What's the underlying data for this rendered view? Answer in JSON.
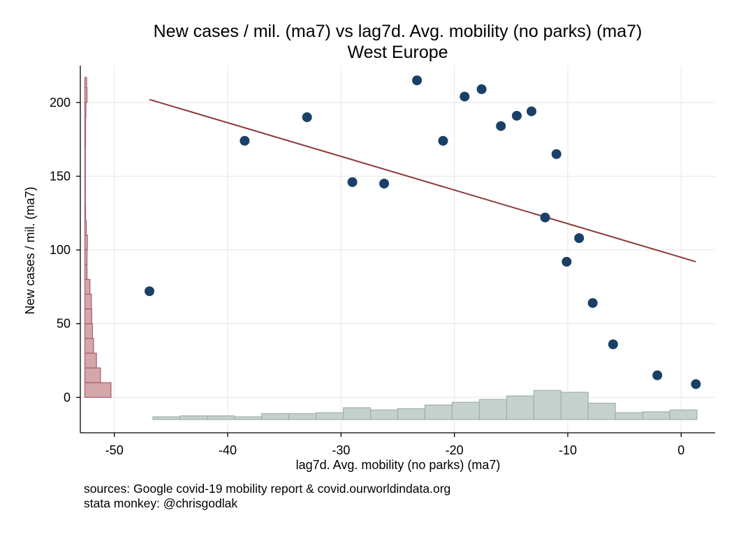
{
  "chart_data": {
    "type": "scatter",
    "title": "New cases / mil. (ma7) vs lag7d. Avg. mobility (no parks) (ma7)",
    "subtitle": "West Europe",
    "xlabel": "lag7d. Avg. mobility (no parks) (ma7)",
    "ylabel": "New cases / mil. (ma7)",
    "xlim": [
      -53,
      3
    ],
    "ylim": [
      -24,
      225
    ],
    "x_ticks": [
      -50,
      -40,
      -30,
      -20,
      -10,
      0
    ],
    "y_ticks": [
      0,
      50,
      100,
      150,
      200
    ],
    "grid": true,
    "points": [
      {
        "x": -46.9,
        "y": 72
      },
      {
        "x": -38.5,
        "y": 174
      },
      {
        "x": -33.0,
        "y": 190
      },
      {
        "x": -29.0,
        "y": 146
      },
      {
        "x": -26.2,
        "y": 145
      },
      {
        "x": -23.3,
        "y": 215
      },
      {
        "x": -21.0,
        "y": 174
      },
      {
        "x": -19.1,
        "y": 204
      },
      {
        "x": -17.6,
        "y": 209
      },
      {
        "x": -15.9,
        "y": 184
      },
      {
        "x": -14.5,
        "y": 191
      },
      {
        "x": -13.2,
        "y": 194
      },
      {
        "x": -12.0,
        "y": 122
      },
      {
        "x": -11.0,
        "y": 165
      },
      {
        "x": -10.1,
        "y": 92
      },
      {
        "x": -9.0,
        "y": 108
      },
      {
        "x": -7.8,
        "y": 64
      },
      {
        "x": -6.0,
        "y": 36
      },
      {
        "x": -2.1,
        "y": 15
      },
      {
        "x": 1.3,
        "y": 9
      }
    ],
    "fit_line": {
      "x": [
        -46.9,
        1.3
      ],
      "y": [
        202,
        92
      ]
    },
    "x_histogram": {
      "bin_edges": [
        -46.6,
        -44.2,
        -41.8,
        -39.4,
        -37.0,
        -34.6,
        -32.2,
        -29.8,
        -27.4,
        -25.0,
        -22.6,
        -20.2,
        -17.8,
        -15.4,
        -13.0,
        -10.6,
        -8.2,
        -5.8,
        -3.4,
        -1.0,
        1.4
      ],
      "density": [
        0.006,
        0.008,
        0.008,
        0.006,
        0.013,
        0.013,
        0.015,
        0.026,
        0.021,
        0.024,
        0.032,
        0.038,
        0.044,
        0.052,
        0.064,
        0.06,
        0.036,
        0.015,
        0.017,
        0.021
      ]
    },
    "y_histogram": {
      "bin_edges": [
        0,
        10,
        20,
        30,
        40,
        50,
        60,
        70,
        80,
        90,
        100,
        110,
        120,
        130,
        140,
        150,
        160,
        170,
        180,
        190,
        200,
        210,
        217
      ],
      "density": [
        0.072,
        0.043,
        0.032,
        0.024,
        0.021,
        0.019,
        0.018,
        0.014,
        0.006,
        0.006,
        0.007,
        0.004,
        0.002,
        0.001,
        0.001,
        0.001,
        0.001,
        0.002,
        0.002,
        0.003,
        0.006,
        0.005
      ]
    },
    "colors": {
      "points": "#1a4068",
      "fit_line": "#8b3a3a",
      "x_hist_fill": "#c5d1cc",
      "x_hist_stroke": "#9fb0a9",
      "y_hist_fill": "#d4a7ad",
      "y_hist_stroke": "#a85c66",
      "grid": "#e6e6e6"
    }
  },
  "footer": {
    "line1": "sources: Google covid-19 mobility report & covid.ourworldindata.org",
    "line2": "stata monkey: @chrisgodlak"
  }
}
